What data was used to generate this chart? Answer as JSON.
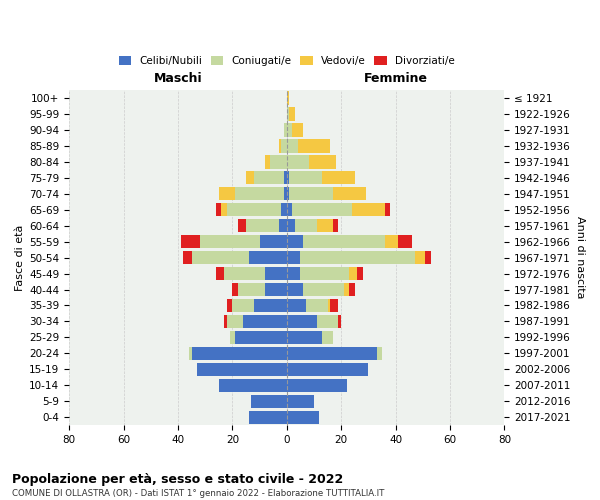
{
  "age_groups": [
    "0-4",
    "5-9",
    "10-14",
    "15-19",
    "20-24",
    "25-29",
    "30-34",
    "35-39",
    "40-44",
    "45-49",
    "50-54",
    "55-59",
    "60-64",
    "65-69",
    "70-74",
    "75-79",
    "80-84",
    "85-89",
    "90-94",
    "95-99",
    "100+"
  ],
  "birth_years": [
    "2017-2021",
    "2012-2016",
    "2007-2011",
    "2002-2006",
    "1997-2001",
    "1992-1996",
    "1987-1991",
    "1982-1986",
    "1977-1981",
    "1972-1976",
    "1967-1971",
    "1962-1966",
    "1957-1961",
    "1952-1956",
    "1947-1951",
    "1942-1946",
    "1937-1941",
    "1932-1936",
    "1927-1931",
    "1922-1926",
    "≤ 1921"
  ],
  "males": {
    "celibe": [
      14,
      13,
      25,
      33,
      35,
      19,
      16,
      12,
      8,
      8,
      14,
      10,
      3,
      2,
      1,
      1,
      0,
      0,
      0,
      0,
      0
    ],
    "coniugato": [
      0,
      0,
      0,
      0,
      1,
      2,
      6,
      8,
      10,
      15,
      21,
      22,
      12,
      20,
      18,
      11,
      6,
      2,
      1,
      0,
      0
    ],
    "vedovo": [
      0,
      0,
      0,
      0,
      0,
      0,
      0,
      0,
      0,
      0,
      0,
      0,
      0,
      2,
      6,
      3,
      2,
      1,
      0,
      0,
      0
    ],
    "divorziato": [
      0,
      0,
      0,
      0,
      0,
      0,
      1,
      2,
      2,
      3,
      3,
      7,
      3,
      2,
      0,
      0,
      0,
      0,
      0,
      0,
      0
    ]
  },
  "females": {
    "nubile": [
      12,
      10,
      22,
      30,
      33,
      13,
      11,
      7,
      6,
      5,
      5,
      6,
      3,
      2,
      1,
      1,
      0,
      0,
      0,
      0,
      0
    ],
    "coniugata": [
      0,
      0,
      0,
      0,
      2,
      4,
      8,
      8,
      15,
      18,
      42,
      30,
      8,
      22,
      16,
      12,
      8,
      4,
      2,
      1,
      0
    ],
    "vedova": [
      0,
      0,
      0,
      0,
      0,
      0,
      0,
      1,
      2,
      3,
      4,
      5,
      6,
      12,
      12,
      12,
      10,
      12,
      4,
      2,
      1
    ],
    "divorziata": [
      0,
      0,
      0,
      0,
      0,
      0,
      1,
      3,
      2,
      2,
      2,
      5,
      2,
      2,
      0,
      0,
      0,
      0,
      0,
      0,
      0
    ]
  },
  "colors": {
    "celibe": "#4472C4",
    "coniugato": "#c5d9a0",
    "vedovo": "#f5c842",
    "divorziato": "#e02020"
  },
  "xlim": 80,
  "title": "Popolazione per età, sesso e stato civile - 2022",
  "subtitle": "COMUNE DI OLLASTRA (OR) - Dati ISTAT 1° gennaio 2022 - Elaborazione TUTTITALIA.IT",
  "ylabel_left": "Fasce di età",
  "ylabel_right": "Anni di nascita",
  "xlabel_left": "Maschi",
  "xlabel_right": "Femmine",
  "bg_color": "#eef2ee",
  "grid_color": "#cccccc"
}
